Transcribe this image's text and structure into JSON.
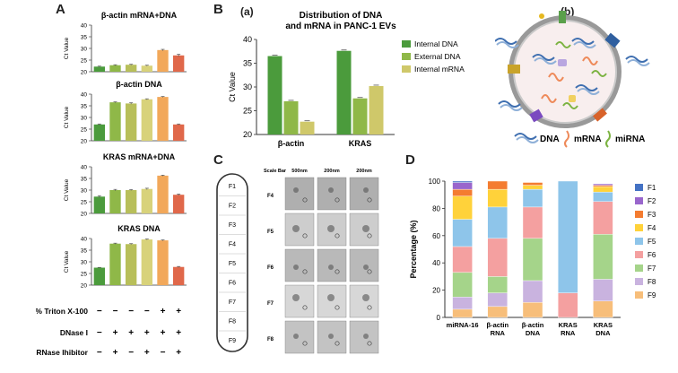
{
  "panel_labels": {
    "A": "A",
    "B": "B",
    "a": "(a)",
    "b": "(b)",
    "C": "C",
    "D": "D"
  },
  "colors": {
    "green": "#4b9b3c",
    "lightgreen": "#8fb848",
    "khaki": "#b8bf5a",
    "yellowpale": "#d8d27a",
    "cream": "#f3e8a0",
    "orange": "#f2a85a",
    "red": "#e0684a",
    "bar_internal_dna": "#4b9b3c",
    "bar_external_dna": "#8fb848",
    "bar_internal_mrna": "#cfc86a",
    "F1": "#4472c4",
    "F2": "#9966cc",
    "F3": "#f47c30",
    "F4": "#ffd23a",
    "F5": "#8ec5ea",
    "F6": "#f4a0a0",
    "F7": "#a5d48a",
    "F8": "#c9b3df",
    "F9": "#f7be7a"
  },
  "chart_data": [
    {
      "type": "bar",
      "panel": "A1",
      "title": "β-actin mRNA+DNA",
      "ylabel": "Ct Value",
      "ylim": [
        20,
        40
      ],
      "yticks": [
        "40",
        "35",
        "30",
        "25",
        "20"
      ],
      "values": [
        22.2,
        22.8,
        23.0,
        22.6,
        29.3,
        27.0
      ],
      "error": [
        0.2,
        0.2,
        0.2,
        0.2,
        0.3,
        0.5
      ]
    },
    {
      "type": "bar",
      "panel": "A2",
      "title": "β-actin DNA",
      "ylabel": "Ct Value",
      "ylim": [
        20,
        40
      ],
      "yticks": [
        "40",
        "35",
        "30",
        "25",
        "20"
      ],
      "values": [
        27.0,
        36.5,
        36.0,
        37.8,
        38.8,
        27.0
      ],
      "error": [
        0.2,
        0.2,
        0.3,
        0.2,
        0.2,
        0.2
      ]
    },
    {
      "type": "bar",
      "panel": "A3",
      "title": "KRAS mRNA+DNA",
      "ylabel": "Ct Value",
      "ylim": [
        20,
        40
      ],
      "yticks": [
        "40",
        "35",
        "30",
        "25",
        "20"
      ],
      "values": [
        27.2,
        30.0,
        30.0,
        30.5,
        36.2,
        28.0
      ],
      "error": [
        0.4,
        0.3,
        0.2,
        0.3,
        0.2,
        0.3
      ]
    },
    {
      "type": "bar",
      "panel": "A4",
      "title": "KRAS DNA",
      "ylabel": "Ct Value",
      "ylim": [
        20,
        40
      ],
      "yticks": [
        "40",
        "35",
        "30",
        "25",
        "20"
      ],
      "values": [
        27.5,
        37.8,
        37.6,
        39.6,
        39.2,
        27.8
      ],
      "error": [
        0.1,
        0.2,
        0.2,
        0.2,
        0.2,
        0.2
      ]
    },
    {
      "type": "bar",
      "panel": "B",
      "title": "Distribution of DNA and mRNA in PANC-1 EVs",
      "title_lines": [
        "Distribution of DNA",
        "and mRNA in PANC-1 EVs"
      ],
      "ylabel": "Ct Value",
      "ylim": [
        20,
        40
      ],
      "yticks": [
        "40",
        "35",
        "30",
        "25",
        "20"
      ],
      "categories": [
        "β-actin",
        "KRAS"
      ],
      "series": [
        {
          "name": "Internal DNA",
          "values": [
            36.5,
            37.6
          ]
        },
        {
          "name": "External DNA",
          "values": [
            27.0,
            27.6
          ]
        },
        {
          "name": "Internal mRNA",
          "values": [
            22.7,
            30.2
          ]
        }
      ]
    },
    {
      "type": "bar",
      "stacked": true,
      "panel": "D",
      "ylabel": "Percentage (%)",
      "ylim": [
        0,
        100
      ],
      "yticks": [
        "100",
        "80",
        "60",
        "40",
        "20",
        "0"
      ],
      "categories": [
        "miRNA-16",
        "β-actin RNA",
        "β-actin DNA",
        "KRAS RNA",
        "KRAS DNA"
      ],
      "category_lines": [
        [
          "miRNA-16"
        ],
        [
          "β-actin",
          "RNA"
        ],
        [
          "β-actin",
          "DNA"
        ],
        [
          "KRAS",
          "RNA"
        ],
        [
          "KRAS",
          "DNA"
        ]
      ],
      "series": [
        {
          "name": "F9",
          "values": [
            6,
            8,
            11,
            0,
            12
          ]
        },
        {
          "name": "F8",
          "values": [
            9,
            10,
            16,
            0,
            16
          ]
        },
        {
          "name": "F7",
          "values": [
            18,
            12,
            31,
            0,
            33
          ]
        },
        {
          "name": "F6",
          "values": [
            19,
            28,
            23,
            18,
            24
          ]
        },
        {
          "name": "F5",
          "values": [
            20,
            23,
            13,
            82,
            7
          ]
        },
        {
          "name": "F4",
          "values": [
            17,
            13,
            3,
            0,
            4
          ]
        },
        {
          "name": "F3",
          "values": [
            5,
            6,
            2,
            0,
            1
          ]
        },
        {
          "name": "F2",
          "values": [
            5,
            0,
            0,
            0,
            1
          ]
        },
        {
          "name": "F1",
          "values": [
            1,
            0,
            0,
            0,
            0
          ]
        }
      ],
      "legend": [
        "F1",
        "F2",
        "F3",
        "F4",
        "F5",
        "F6",
        "F7",
        "F8",
        "F9"
      ]
    }
  ],
  "conditions": {
    "rows": [
      {
        "label": "1% Triton X-100",
        "marks": [
          "−",
          "−",
          "−",
          "−",
          "+",
          "+"
        ]
      },
      {
        "label": "DNase I",
        "marks": [
          "−",
          "+",
          "+",
          "+",
          "+",
          "+"
        ]
      },
      {
        "label": "RNase Ihibitor",
        "marks": [
          "−",
          "+",
          "−",
          "+",
          "−",
          "+"
        ]
      }
    ]
  },
  "schematic": {
    "legend": [
      "DNA",
      "mRNA",
      "miRNA"
    ]
  },
  "fractions": {
    "scale_bar_label": "Scale Bar",
    "scales": [
      "500nm",
      "200nm",
      "200nm"
    ],
    "tube": [
      "F1",
      "F2",
      "F3",
      "F4",
      "F5",
      "F6",
      "F7",
      "F8",
      "F9"
    ],
    "rows": [
      "F4",
      "F5",
      "F6",
      "F7",
      "F8"
    ]
  }
}
